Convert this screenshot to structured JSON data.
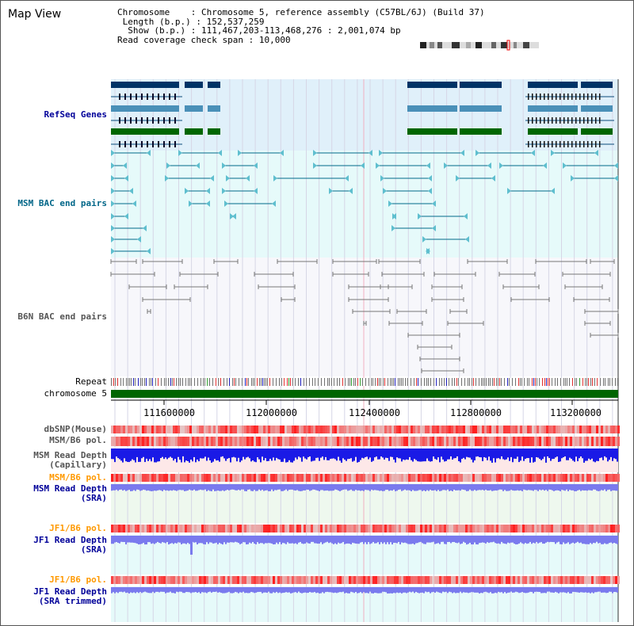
{
  "title": "Map View",
  "info": {
    "chromosome_label": "Chromosome",
    "chromosome_value": "Chromosome 5, reference assembly (C57BL/6J) (Build 37)",
    "length_label": "Length (b.p.)",
    "length_value": "152,537,259",
    "show_label": "Show (b.p.)",
    "show_value": "111,467,203-113,468,276 : 2,001,074 bp",
    "coverage_label": "Read coverage check span",
    "coverage_value": "10,000"
  },
  "tracks": {
    "refseq": "RefSeq Genes",
    "msm_bac": "MSM BAC end pairs",
    "b6n_bac": "B6N BAC end pairs",
    "repeat": "Repeat",
    "chromosome": "chromosome 5",
    "dbsnp": "dbSNP(Mouse)",
    "msm_b6_pol": "MSM/B6 pol.",
    "msm_depth_cap": "MSM Read Depth\n(Capillary)",
    "msm_b6_pol2": "MSM/B6 pol.",
    "msm_depth_sra": "MSM Read Depth\n(SRA)",
    "jf1_b6_pol": "JF1/B6 pol.",
    "jf1_depth_sra": "JF1 Read Depth\n(SRA)",
    "jf1_b6_pol2": "JF1/B6 pol.",
    "jf1_depth_trim": "JF1 Read Depth\n(SRA trimmed)"
  },
  "axis_ticks": [
    "111600000",
    "112000000",
    "112400000",
    "112800000",
    "113200000"
  ],
  "colors": {
    "refseq_bg": "#e0f0fa",
    "msm_bac_bg": "#e6fafa",
    "b6n_bg": "#f7f7fb",
    "gene_navy": "#003366",
    "gene_steel": "#4a90b8",
    "gene_green": "#006600",
    "msm_line": "#006a8a",
    "b6n_line": "#777777",
    "chrom_green": "#006600",
    "depth_blue": "#1a1ae6",
    "depth_light": "#7a7aee",
    "label_gray": "#555555",
    "label_teal": "#006688",
    "label_navy": "#000099",
    "label_orange": "#ff9900"
  }
}
